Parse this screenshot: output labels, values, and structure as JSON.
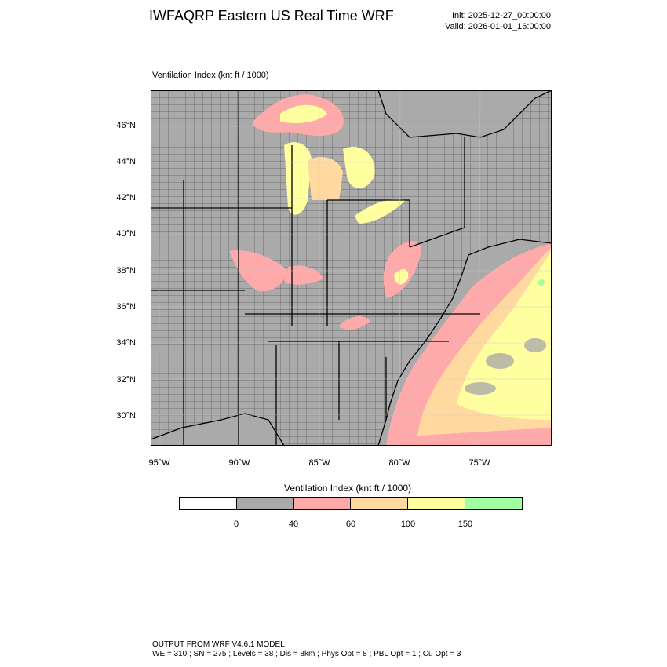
{
  "header": {
    "title": "IWFAQRP Eastern US Real Time WRF",
    "init": "Init: 2025-12-27_00:00:00",
    "valid": "Valid: 2026-01-01_16:00:00"
  },
  "field_label": "Ventilation Index   (knt ft / 1000)",
  "map": {
    "lat_labels": [
      "46°N",
      "44°N",
      "42°N",
      "40°N",
      "38°N",
      "36°N",
      "34°N",
      "32°N",
      "30°N"
    ],
    "lon_labels": [
      "95°W",
      "90°W",
      "85°W",
      "80°W",
      "75°W"
    ],
    "colors": {
      "background": "#aaaaaa",
      "low": "#ffaaaa",
      "moderate": "#ffd9a0",
      "good": "#ffffa0",
      "excellent": "#a0ffa0",
      "lines": "#000000"
    }
  },
  "legend": {
    "title": "Ventilation Index  (knt ft / 1000)",
    "colors": [
      "#ffffff",
      "#aaaaaa",
      "#ffaaaa",
      "#ffd9a0",
      "#ffffa0",
      "#a0ffa0"
    ],
    "labels": [
      "0",
      "40",
      "60",
      "100",
      "150"
    ]
  },
  "footer": {
    "line1": "OUTPUT FROM WRF V4.6.1 MODEL",
    "line2": "WE = 310 ; SN = 275 ; Levels = 38 ; Dis = 8km ; Phys Opt = 8 ; PBL Opt = 1 ; Cu Opt = 3"
  }
}
